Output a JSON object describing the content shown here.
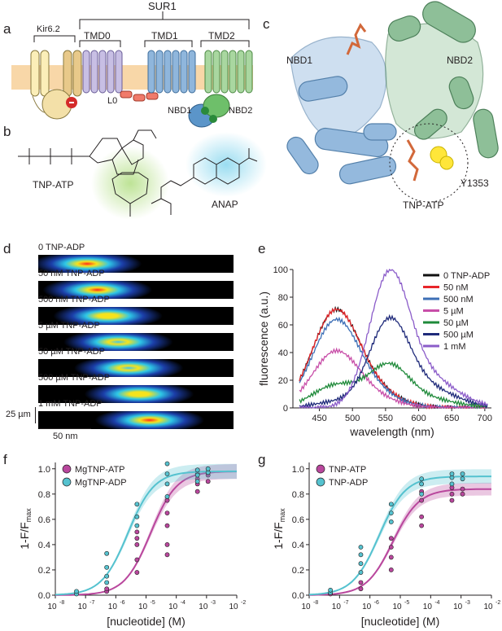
{
  "panels": {
    "a": {
      "letter": "a",
      "labels": {
        "kir": "Kir6.2",
        "sur1": "SUR1",
        "tmd0": "TMD0",
        "tmd1": "TMD1",
        "tmd2": "TMD2",
        "l0": "L0",
        "nbd1": "NBD1",
        "nbd2": "NBD2"
      }
    },
    "b": {
      "letter": "b",
      "labels": {
        "tnp": "TNP-ATP",
        "anap": "ANAP"
      }
    },
    "c": {
      "letter": "c",
      "labels": {
        "nbd1": "NBD1",
        "nbd2": "NBD2",
        "tnp": "TNP-ATP",
        "residue": "Y1353"
      }
    },
    "d": {
      "letter": "d",
      "strips": [
        "0 TNP-ADP",
        "50 nM TNP-ADP",
        "500 nM TNP-ADP",
        "5 µM TNP-ADP",
        "50 µM TNP-ADP",
        "500 µM TNP-ADP",
        "1 mM TNP-ADP"
      ],
      "scale_y": "25 µm",
      "scale_x": "50 nm"
    },
    "e": {
      "letter": "e"
    },
    "f": {
      "letter": "f"
    },
    "g": {
      "letter": "g"
    }
  },
  "chart_data": [
    {
      "panel": "e",
      "type": "line",
      "xlabel": "wavelength (nm)",
      "ylabel": "fluorescence (a.u.)",
      "xlim": [
        410,
        710
      ],
      "ylim": [
        0,
        100
      ],
      "xticks": [
        "450",
        "500",
        "550",
        "600",
        "650",
        "700"
      ],
      "yticks": [
        "0",
        "20",
        "40",
        "60",
        "80",
        "100"
      ],
      "legend_position": "top-right",
      "series": [
        {
          "name": "0 TNP-ADP",
          "color": "#111111",
          "ex": 69,
          "em": 0
        },
        {
          "name": "50 nM",
          "color": "#e8262b",
          "ex": 69,
          "em": 0
        },
        {
          "name": "500 nM",
          "color": "#3d6fb6",
          "ex": 62,
          "em": 0
        },
        {
          "name": "5 µM",
          "color": "#c84ea8",
          "ex": 40,
          "em": 0
        },
        {
          "name": "50 µM",
          "color": "#1f8a3a",
          "ex": 16,
          "em": 29
        },
        {
          "name": "500 µM",
          "color": "#1f2a7a",
          "ex": 4,
          "em": 64
        },
        {
          "name": "1 mM",
          "color": "#8b5cc9",
          "ex": 0,
          "em": 99
        }
      ]
    },
    {
      "panel": "f",
      "type": "scatter",
      "xlabel": "[nucleotide] (M)",
      "ylabel": "1-F/F",
      "ylabel_sub": "max",
      "xlim_log10": [
        -8,
        -2
      ],
      "ylim": [
        0,
        1.05
      ],
      "xticks": [
        "10",
        "10",
        "10",
        "10",
        "10",
        "10",
        "10"
      ],
      "xtick_exponents": [
        "-8",
        "-7",
        "-6",
        "-5",
        "-4",
        "-3",
        "-2"
      ],
      "yticks": [
        "0.0",
        "0.2",
        "0.4",
        "0.6",
        "0.8",
        "1.0"
      ],
      "legend_position": "top-left",
      "series": [
        {
          "name": "MgTNP-ATP",
          "color": "#b9479d",
          "logEC50": -4.85,
          "max": 0.98,
          "hill": 1.0,
          "points": [
            [
              -6.3,
              0.03
            ],
            [
              -6.3,
              0.05
            ],
            [
              -5.3,
              0.18
            ],
            [
              -5.3,
              0.28
            ],
            [
              -5.3,
              0.4
            ],
            [
              -5.3,
              0.45
            ],
            [
              -5.3,
              0.5
            ],
            [
              -4.3,
              0.32
            ],
            [
              -4.3,
              0.4
            ],
            [
              -4.3,
              0.55
            ],
            [
              -4.3,
              0.65
            ],
            [
              -4.3,
              0.75
            ],
            [
              -3.3,
              0.82
            ],
            [
              -3.3,
              0.88
            ],
            [
              -3.3,
              0.92
            ],
            [
              -3.3,
              0.96
            ],
            [
              -2.95,
              0.9
            ],
            [
              -2.95,
              0.95
            ]
          ]
        },
        {
          "name": "MgTNP-ADP",
          "color": "#55c2cf",
          "logEC50": -5.6,
          "max": 0.98,
          "hill": 1.0,
          "points": [
            [
              -7.3,
              0.01
            ],
            [
              -7.3,
              0.03
            ],
            [
              -6.3,
              0.1
            ],
            [
              -6.3,
              0.15
            ],
            [
              -6.3,
              0.22
            ],
            [
              -6.3,
              0.33
            ],
            [
              -5.3,
              0.55
            ],
            [
              -5.3,
              0.62
            ],
            [
              -5.3,
              0.72
            ],
            [
              -4.3,
              0.78
            ],
            [
              -4.3,
              0.88
            ],
            [
              -4.3,
              0.96
            ],
            [
              -4.3,
              1.04
            ],
            [
              -3.3,
              0.9
            ],
            [
              -3.3,
              0.95
            ],
            [
              -3.3,
              0.99
            ],
            [
              -2.95,
              0.97
            ],
            [
              -2.95,
              1.0
            ]
          ]
        }
      ]
    },
    {
      "panel": "g",
      "type": "scatter",
      "xlabel": "[nucleotide] (M)",
      "ylabel": "1-F/F",
      "ylabel_sub": "max",
      "xlim_log10": [
        -8,
        -2
      ],
      "ylim": [
        0,
        1.05
      ],
      "xticks": [
        "10",
        "10",
        "10",
        "10",
        "10",
        "10",
        "10"
      ],
      "xtick_exponents": [
        "-8",
        "-7",
        "-6",
        "-5",
        "-4",
        "-3",
        "-2"
      ],
      "yticks": [
        "0.0",
        "0.2",
        "0.4",
        "0.6",
        "0.8",
        "1.0"
      ],
      "legend_position": "top-left",
      "series": [
        {
          "name": "TNP-ATP",
          "color": "#b9479d",
          "logEC50": -5.25,
          "max": 0.84,
          "hill": 1.0,
          "points": [
            [
              -7.3,
              0.01
            ],
            [
              -6.3,
              0.05
            ],
            [
              -6.3,
              0.1
            ],
            [
              -5.3,
              0.2
            ],
            [
              -5.3,
              0.3
            ],
            [
              -5.3,
              0.38
            ],
            [
              -5.3,
              0.45
            ],
            [
              -4.3,
              0.55
            ],
            [
              -4.3,
              0.62
            ],
            [
              -4.3,
              0.75
            ],
            [
              -4.3,
              0.82
            ],
            [
              -3.3,
              0.75
            ],
            [
              -3.3,
              0.8
            ],
            [
              -3.3,
              0.85
            ],
            [
              -2.95,
              0.8
            ],
            [
              -2.95,
              0.84
            ]
          ]
        },
        {
          "name": "TNP-ADP",
          "color": "#55c2cf",
          "logEC50": -5.7,
          "max": 0.94,
          "hill": 1.0,
          "points": [
            [
              -7.3,
              0.02
            ],
            [
              -7.3,
              0.04
            ],
            [
              -6.3,
              0.18
            ],
            [
              -6.3,
              0.25
            ],
            [
              -6.3,
              0.32
            ],
            [
              -6.3,
              0.38
            ],
            [
              -5.3,
              0.58
            ],
            [
              -5.3,
              0.65
            ],
            [
              -5.3,
              0.72
            ],
            [
              -4.3,
              0.8
            ],
            [
              -4.3,
              0.88
            ],
            [
              -4.3,
              0.92
            ],
            [
              -3.3,
              0.88
            ],
            [
              -3.3,
              0.93
            ],
            [
              -3.3,
              0.96
            ],
            [
              -2.95,
              0.92
            ],
            [
              -2.95,
              0.96
            ]
          ]
        }
      ]
    }
  ]
}
